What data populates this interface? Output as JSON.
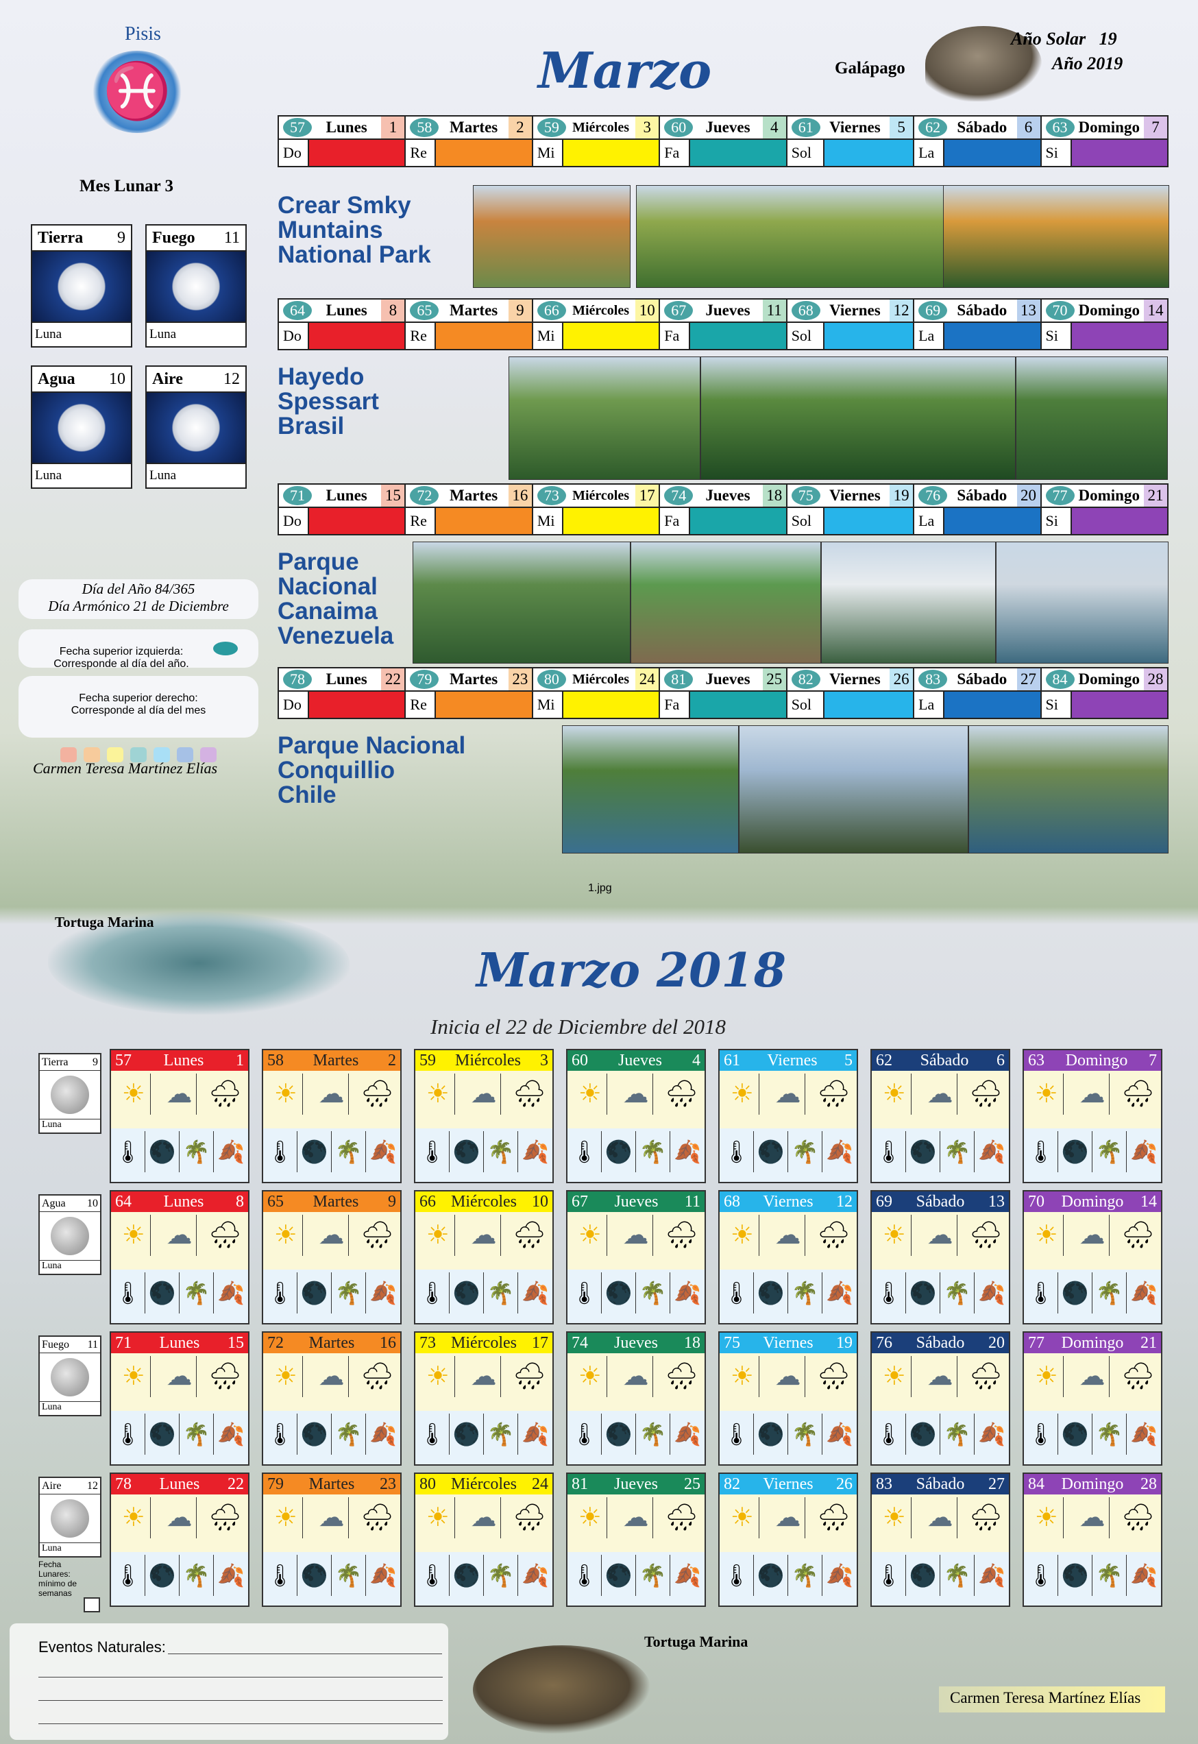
{
  "top": {
    "sign": "Pisis",
    "month": "Marzo",
    "solar_year_label": "Año Solar",
    "solar_year": "19",
    "year_label": "Año 2019",
    "animal": "Galápago",
    "lunar_month": "Mes Lunar 3",
    "moons": [
      {
        "name": "Tierra",
        "num": "9",
        "foot": "Luna"
      },
      {
        "name": "Fuego",
        "num": "11",
        "foot": "Luna"
      },
      {
        "name": "Agua",
        "num": "10",
        "foot": "Luna"
      },
      {
        "name": "Aire",
        "num": "12",
        "foot": "Luna"
      }
    ],
    "day_of_year": "Día del Año 84/365",
    "harmonic_day": "Día Armónico 21 de Diciembre",
    "legend_left": "Fecha superior izquierda:\nCorresponde al día del año.",
    "legend_right": "Fecha superior derecho:\nCorresponde al día del mes",
    "author": "Carmen Teresa Martínez Elías",
    "abbr": [
      "Do",
      "Re",
      "Mi",
      "Fa",
      "Sol",
      "La",
      "Si"
    ],
    "weeks": [
      {
        "days": [
          [
            "57",
            "Lunes",
            "1"
          ],
          [
            "58",
            "Martes",
            "2"
          ],
          [
            "59",
            "Miércoles",
            "3"
          ],
          [
            "60",
            "Jueves",
            "4"
          ],
          [
            "61",
            "Viernes",
            "5"
          ],
          [
            "62",
            "Sábado",
            "6"
          ],
          [
            "63",
            "Domingo",
            "7"
          ]
        ],
        "place": [
          "Crear Smky",
          "Muntains",
          "National Park"
        ]
      },
      {
        "days": [
          [
            "64",
            "Lunes",
            "8"
          ],
          [
            "65",
            "Martes",
            "9"
          ],
          [
            "66",
            "Miércoles",
            "10"
          ],
          [
            "67",
            "Jueves",
            "11"
          ],
          [
            "68",
            "Viernes",
            "12"
          ],
          [
            "69",
            "Sábado",
            "13"
          ],
          [
            "70",
            "Domingo",
            "14"
          ]
        ],
        "place": [
          "Hayedo",
          "Spessart",
          "Brasil"
        ]
      },
      {
        "days": [
          [
            "71",
            "Lunes",
            "15"
          ],
          [
            "72",
            "Martes",
            "16"
          ],
          [
            "73",
            "Miércoles",
            "17"
          ],
          [
            "74",
            "Jueves",
            "18"
          ],
          [
            "75",
            "Viernes",
            "19"
          ],
          [
            "76",
            "Sábado",
            "20"
          ],
          [
            "77",
            "Domingo",
            "21"
          ]
        ],
        "place": [
          "Parque",
          "Nacional",
          "Canaima",
          "Venezuela"
        ]
      },
      {
        "days": [
          [
            "78",
            "Lunes",
            "22"
          ],
          [
            "79",
            "Martes",
            "23"
          ],
          [
            "80",
            "Miércoles",
            "24"
          ],
          [
            "81",
            "Jueves",
            "25"
          ],
          [
            "82",
            "Viernes",
            "26"
          ],
          [
            "83",
            "Sábado",
            "27"
          ],
          [
            "84",
            "Domingo",
            "28"
          ]
        ],
        "place": [
          "Parque Nacional",
          "Conquillio",
          "Chile"
        ]
      }
    ],
    "bar_colors": [
      "#e8202a",
      "#f58a23",
      "#fff200",
      "#1aa6a9",
      "#27b4ea",
      "#1b73c4",
      "#8e44b6"
    ]
  },
  "filename": "1.jpg",
  "bottom": {
    "animal": "Tortuga Marina",
    "title": "Marzo 2018",
    "subtitle": "Inicia el 22 de Diciembre del 2018",
    "side": [
      {
        "name": "Tierra",
        "num": "9",
        "foot": "Luna"
      },
      {
        "name": "Agua",
        "num": "10",
        "foot": "Luna"
      },
      {
        "name": "Fuego",
        "num": "11",
        "foot": "Luna"
      },
      {
        "name": "Aire",
        "num": "12",
        "foot": "Luna"
      }
    ],
    "fecha_note": "Fecha Lunares: mínimo de semanas",
    "events_label": "Eventos Naturales:",
    "animal2": "Tortuga Marina",
    "author": "Carmen Teresa Martínez Elías",
    "head_colors": [
      "#e8202a",
      "#f58a23",
      "#fff200",
      "#1a8a5a",
      "#27b4ea",
      "#1b3f7a",
      "#8e44b6"
    ],
    "head_text": [
      "#fff",
      "#222",
      "#222",
      "#fff",
      "#fff",
      "#fff",
      "#fff"
    ],
    "weeks": [
      [
        [
          "57",
          "Lunes",
          "1"
        ],
        [
          "58",
          "Martes",
          "2"
        ],
        [
          "59",
          "Miércoles",
          "3"
        ],
        [
          "60",
          "Jueves",
          "4"
        ],
        [
          "61",
          "Viernes",
          "5"
        ],
        [
          "62",
          "Sábado",
          "6"
        ],
        [
          "63",
          "Domingo",
          "7"
        ]
      ],
      [
        [
          "64",
          "Lunes",
          "8"
        ],
        [
          "65",
          "Martes",
          "9"
        ],
        [
          "66",
          "Miércoles",
          "10"
        ],
        [
          "67",
          "Jueves",
          "11"
        ],
        [
          "68",
          "Viernes",
          "12"
        ],
        [
          "69",
          "Sábado",
          "13"
        ],
        [
          "70",
          "Domingo",
          "14"
        ]
      ],
      [
        [
          "71",
          "Lunes",
          "15"
        ],
        [
          "72",
          "Martes",
          "16"
        ],
        [
          "73",
          "Miércoles",
          "17"
        ],
        [
          "74",
          "Jueves",
          "18"
        ],
        [
          "75",
          "Viernes",
          "19"
        ],
        [
          "76",
          "Sábado",
          "20"
        ],
        [
          "77",
          "Domingo",
          "21"
        ]
      ],
      [
        [
          "78",
          "Lunes",
          "22"
        ],
        [
          "79",
          "Martes",
          "23"
        ],
        [
          "80",
          "Miércoles",
          "24"
        ],
        [
          "81",
          "Jueves",
          "25"
        ],
        [
          "82",
          "Viernes",
          "26"
        ],
        [
          "83",
          "Sábado",
          "27"
        ],
        [
          "84",
          "Domingo",
          "28"
        ]
      ]
    ],
    "icons_row1": [
      "☀",
      "☁",
      "🌧"
    ],
    "icons_row2": [
      "🌡",
      "🌑",
      "🌴",
      "🍂"
    ]
  }
}
